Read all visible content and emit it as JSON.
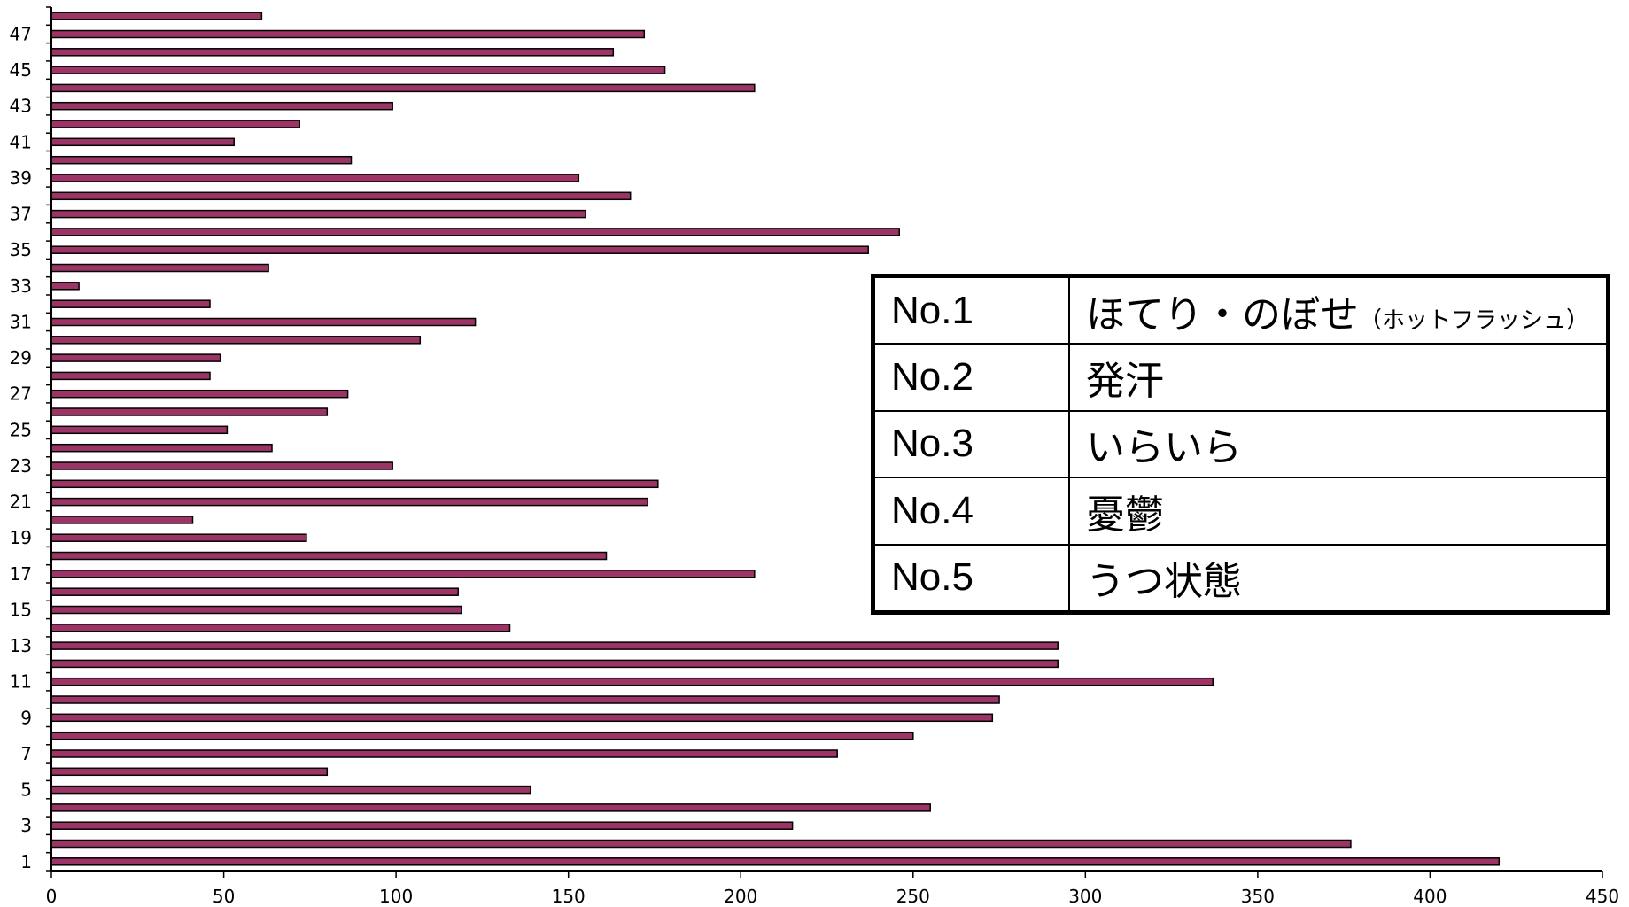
{
  "chart_data": {
    "type": "bar",
    "orientation": "horizontal",
    "categories": [
      1,
      2,
      3,
      4,
      5,
      6,
      7,
      8,
      9,
      10,
      11,
      12,
      13,
      14,
      15,
      16,
      17,
      18,
      19,
      20,
      21,
      22,
      23,
      24,
      25,
      26,
      27,
      28,
      29,
      30,
      31,
      32,
      33,
      34,
      35,
      36,
      37,
      38,
      39,
      40,
      41,
      42,
      43,
      44,
      45,
      46,
      47,
      48
    ],
    "values": [
      420,
      377,
      215,
      255,
      139,
      80,
      228,
      250,
      273,
      275,
      337,
      292,
      292,
      133,
      119,
      118,
      204,
      161,
      74,
      41,
      173,
      176,
      99,
      64,
      51,
      80,
      86,
      46,
      49,
      107,
      123,
      46,
      8,
      63,
      237,
      246,
      155,
      168,
      153,
      87,
      53,
      72,
      99,
      204,
      178,
      163,
      172,
      61
    ],
    "y_tick_labels": [
      "1",
      "3",
      "5",
      "7",
      "9",
      "11",
      "13",
      "15",
      "17",
      "19",
      "21",
      "23",
      "25",
      "27",
      "29",
      "31",
      "33",
      "35",
      "37",
      "39",
      "41",
      "43",
      "45",
      "47"
    ],
    "x_ticks": [
      0,
      50,
      100,
      150,
      200,
      250,
      300,
      350,
      400,
      450
    ],
    "xlim": [
      0,
      450
    ],
    "bar_color": "#9c3566",
    "bar_edge_color": "#000000",
    "grid": false
  },
  "legend_table": {
    "rows": [
      {
        "rank": "No.1",
        "label": "ほてり・のぼせ",
        "note": "（ホットフラッシュ）"
      },
      {
        "rank": "No.2",
        "label": "発汗",
        "note": ""
      },
      {
        "rank": "No.3",
        "label": "いらいら",
        "note": ""
      },
      {
        "rank": "No.4",
        "label": "憂鬱",
        "note": ""
      },
      {
        "rank": "No.5",
        "label": "うつ状態",
        "note": ""
      }
    ]
  }
}
